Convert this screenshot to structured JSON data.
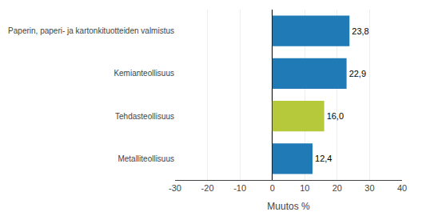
{
  "chart_data": {
    "type": "bar",
    "orientation": "horizontal",
    "categories": [
      "Paperin, paperi- ja kartonkituotteiden valmistus",
      "Kemianteollisuus",
      "Tehdasteollisuus",
      "Metalliteollisuus"
    ],
    "values": [
      23.8,
      22.9,
      16.0,
      12.4
    ],
    "value_labels": [
      "23,8",
      "22,9",
      "16,0",
      "12,4"
    ],
    "data_labels": true,
    "colors": [
      "#1f7ab5",
      "#1f7ab5",
      "#b5c93a",
      "#1f7ab5"
    ],
    "xlabel": "Muutos %",
    "xlim": [
      -30,
      40
    ],
    "xticks": [
      -30,
      -20,
      -10,
      0,
      10,
      20,
      30,
      40
    ],
    "grid": true
  }
}
